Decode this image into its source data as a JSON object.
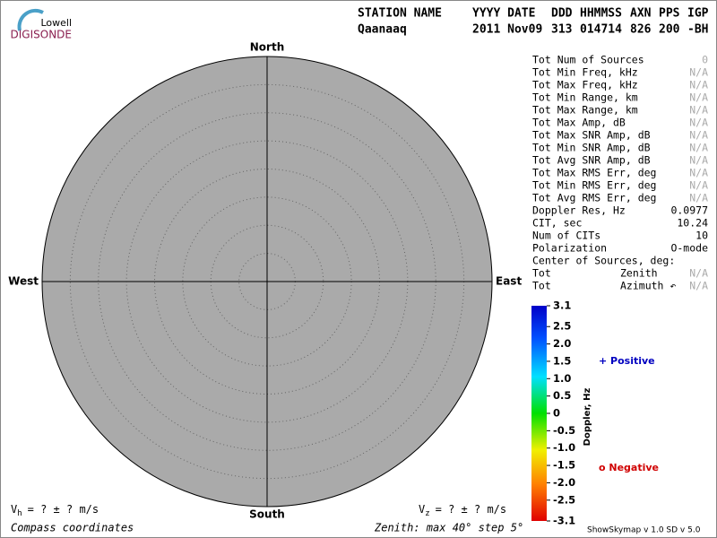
{
  "logo": {
    "top": "Lowell",
    "bottom": "DIGISONDE"
  },
  "header": {
    "columns": [
      "STATION NAME",
      "YYYY DATE",
      "DDD",
      "HHMMSS",
      "AXN",
      "PPS",
      "IGP"
    ],
    "values": [
      "Qaanaaq",
      "2011 Nov09",
      "313",
      "014714",
      "826",
      "200",
      "-BH"
    ]
  },
  "compass": {
    "north": "North",
    "south": "South",
    "east": "East",
    "west": "West"
  },
  "stats": [
    {
      "label": "Tot Num of Sources",
      "value": "0",
      "dim": true
    },
    {
      "label": "Tot Min Freq, kHz",
      "value": "N/A",
      "dim": true
    },
    {
      "label": "Tot Max Freq, kHz",
      "value": "N/A",
      "dim": true
    },
    {
      "label": "Tot Min Range, km",
      "value": "N/A",
      "dim": true
    },
    {
      "label": "Tot Max Range, km",
      "value": "N/A",
      "dim": true
    },
    {
      "label": "Tot Max Amp, dB",
      "value": "N/A",
      "dim": true
    },
    {
      "label": "Tot Max SNR Amp, dB",
      "value": "N/A",
      "dim": true
    },
    {
      "label": "Tot Min SNR Amp, dB",
      "value": "N/A",
      "dim": true
    },
    {
      "label": "Tot Avg SNR Amp, dB",
      "value": "N/A",
      "dim": true
    },
    {
      "label": "Tot Max RMS Err, deg",
      "value": "N/A",
      "dim": true
    },
    {
      "label": "Tot Min RMS Err, deg",
      "value": "N/A",
      "dim": true
    },
    {
      "label": "Tot Avg RMS Err, deg",
      "value": "N/A",
      "dim": true
    },
    {
      "label": "Doppler Res, Hz",
      "value": "0.0977"
    },
    {
      "label": "CIT, sec",
      "value": "10.24"
    },
    {
      "label": "Num of CITs",
      "value": "10"
    },
    {
      "label": "Polarization",
      "value": "O-mode"
    },
    {
      "label": "Center of Sources, deg:"
    },
    {
      "label": "Tot",
      "sublabel": "Zenith",
      "value": "N/A",
      "dim": true
    },
    {
      "label": "Tot",
      "sublabel": "Azimuth ↶",
      "value": "N/A",
      "dim": true
    }
  ],
  "colorbar": {
    "title": "Doppler, Hz",
    "range": [
      -3.1,
      3.1
    ],
    "ticks": [
      3.1,
      2.5,
      {
        "value": 2,
        "label": "2.0"
      },
      1.5,
      {
        "value": 1,
        "label": "1.0"
      },
      0.5,
      0,
      -0.5,
      {
        "value": -1,
        "label": "-1.0"
      },
      -1.5,
      {
        "value": -2,
        "label": "-2.0"
      },
      -2.5,
      -3.1
    ]
  },
  "legend": {
    "positive": "+ Positive",
    "negative": "o Negative"
  },
  "footer": {
    "vh": {
      "symbol": "V",
      "sub": "h",
      "text": "=  ? ±  ? m/s"
    },
    "vz": {
      "symbol": "V",
      "sub": "z",
      "text": "=  ? ±  ? m/s"
    },
    "coordinates": "Compass coordinates",
    "zenith": "Zenith: max 40°  step 5°",
    "version": "ShowSkymap v 1.0  SD v 5.0"
  }
}
